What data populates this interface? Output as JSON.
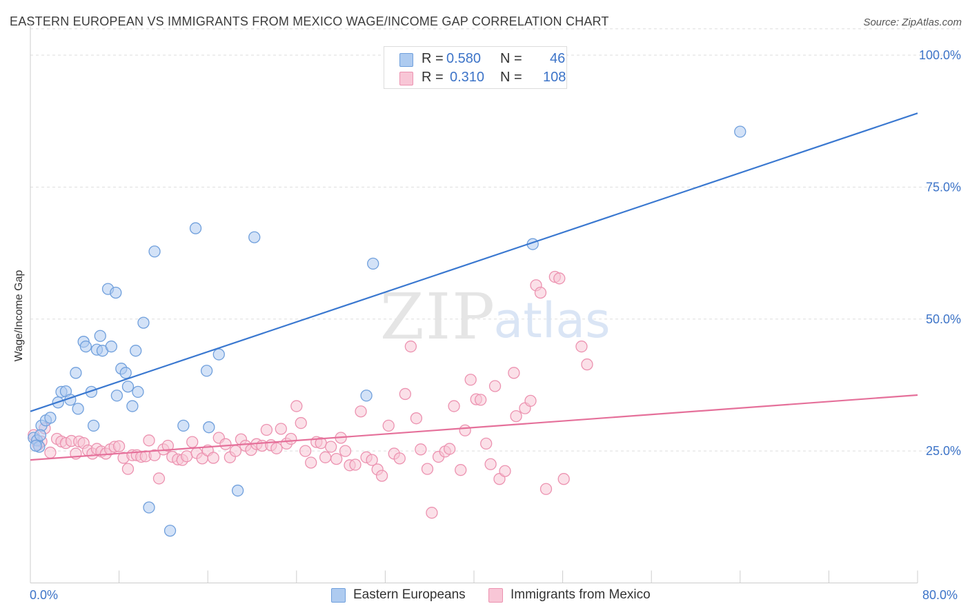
{
  "title": "EASTERN EUROPEAN VS IMMIGRANTS FROM MEXICO WAGE/INCOME GAP CORRELATION CHART",
  "source": "Source: ZipAtlas.com",
  "watermark": {
    "zip": "ZIP",
    "atlas": "atlas"
  },
  "legend_top": {
    "series1": {
      "r_label": "R =",
      "r_value": "0.580",
      "n_label": "N =",
      "n_value": "46"
    },
    "series2": {
      "r_label": "R =",
      "r_value": "0.310",
      "n_label": "N =",
      "n_value": "108"
    }
  },
  "legend_bottom": {
    "series1": "Eastern Europeans",
    "series2": "Immigrants from Mexico"
  },
  "x_axis_labels": {
    "min": "0.0%",
    "max": "80.0%"
  },
  "colors": {
    "blue_fill": "#aecbf0",
    "blue_stroke": "#6f9fdc",
    "blue_line": "#3a78d0",
    "pink_fill": "#f8c6d6",
    "pink_stroke": "#ec92b0",
    "pink_line": "#e5709a",
    "tick_label": "#3d74c8",
    "grid": "#dddddd"
  },
  "chart_data": {
    "type": "scatter",
    "title": "EASTERN EUROPEAN VS IMMIGRANTS FROM MEXICO WAGE/INCOME GAP CORRELATION CHART",
    "xlabel": "",
    "ylabel": "Wage/Income Gap",
    "xlim": [
      0,
      80
    ],
    "ylim": [
      0,
      105
    ],
    "y_ticks": [
      {
        "value": 25,
        "label": "25.0%"
      },
      {
        "value": 50,
        "label": "50.0%"
      },
      {
        "value": 75,
        "label": "75.0%"
      },
      {
        "value": 100,
        "label": "100.0%"
      }
    ],
    "grid": "horizontal dashed",
    "legend": "top-center",
    "series": [
      {
        "name": "Eastern Europeans",
        "r": 0.58,
        "n": 46,
        "trend": {
          "x": [
            0,
            80
          ],
          "y": [
            32.5,
            89.0
          ]
        },
        "points": [
          [
            0.3,
            27.5
          ],
          [
            0.6,
            27.0
          ],
          [
            0.8,
            25.8
          ],
          [
            1.0,
            29.8
          ],
          [
            1.4,
            30.8
          ],
          [
            1.8,
            31.3
          ],
          [
            2.5,
            34.2
          ],
          [
            2.8,
            36.2
          ],
          [
            3.2,
            36.3
          ],
          [
            3.6,
            34.7
          ],
          [
            4.1,
            39.8
          ],
          [
            4.3,
            33.0
          ],
          [
            4.8,
            45.7
          ],
          [
            5.0,
            44.8
          ],
          [
            5.5,
            36.2
          ],
          [
            5.7,
            29.8
          ],
          [
            6.0,
            44.2
          ],
          [
            6.3,
            46.8
          ],
          [
            6.5,
            44.0
          ],
          [
            7.0,
            55.7
          ],
          [
            7.3,
            44.8
          ],
          [
            7.7,
            55.0
          ],
          [
            7.8,
            35.5
          ],
          [
            8.2,
            40.6
          ],
          [
            8.6,
            39.8
          ],
          [
            8.8,
            37.2
          ],
          [
            9.2,
            33.5
          ],
          [
            9.5,
            44.0
          ],
          [
            9.7,
            36.2
          ],
          [
            10.2,
            49.3
          ],
          [
            10.7,
            14.3
          ],
          [
            11.2,
            62.8
          ],
          [
            12.6,
            9.9
          ],
          [
            13.8,
            29.8
          ],
          [
            14.9,
            67.2
          ],
          [
            15.9,
            40.2
          ],
          [
            16.1,
            29.5
          ],
          [
            17.0,
            43.3
          ],
          [
            18.7,
            17.5
          ],
          [
            20.2,
            65.5
          ],
          [
            30.3,
            35.5
          ],
          [
            30.9,
            60.5
          ],
          [
            45.3,
            64.2
          ],
          [
            64.0,
            85.5
          ],
          [
            0.5,
            26.0
          ],
          [
            0.9,
            28.0
          ]
        ]
      },
      {
        "name": "Immigrants from Mexico",
        "r": 0.31,
        "n": 108,
        "trend": {
          "x": [
            0,
            80
          ],
          "y": [
            23.3,
            35.6
          ]
        },
        "points": [
          [
            0.3,
            28.0
          ],
          [
            0.7,
            26.2
          ],
          [
            1.0,
            26.8
          ],
          [
            1.3,
            29.3
          ],
          [
            1.8,
            24.7
          ],
          [
            2.4,
            27.3
          ],
          [
            2.8,
            26.8
          ],
          [
            3.2,
            26.5
          ],
          [
            3.7,
            26.9
          ],
          [
            4.1,
            24.5
          ],
          [
            4.4,
            26.8
          ],
          [
            4.8,
            26.5
          ],
          [
            5.2,
            25.1
          ],
          [
            5.6,
            24.5
          ],
          [
            6.0,
            25.4
          ],
          [
            6.4,
            24.9
          ],
          [
            6.8,
            24.5
          ],
          [
            7.2,
            25.3
          ],
          [
            7.6,
            25.8
          ],
          [
            8.0,
            25.9
          ],
          [
            8.4,
            23.7
          ],
          [
            8.8,
            21.6
          ],
          [
            9.2,
            24.2
          ],
          [
            9.6,
            24.2
          ],
          [
            10.0,
            23.9
          ],
          [
            10.4,
            24.0
          ],
          [
            10.7,
            27.0
          ],
          [
            11.2,
            24.2
          ],
          [
            11.6,
            19.8
          ],
          [
            12.0,
            25.3
          ],
          [
            12.4,
            26.0
          ],
          [
            12.8,
            23.9
          ],
          [
            13.3,
            23.4
          ],
          [
            13.7,
            23.3
          ],
          [
            14.1,
            24.0
          ],
          [
            14.6,
            26.7
          ],
          [
            15.0,
            24.6
          ],
          [
            15.5,
            23.6
          ],
          [
            16.0,
            25.1
          ],
          [
            16.5,
            23.7
          ],
          [
            17.0,
            27.5
          ],
          [
            17.6,
            26.3
          ],
          [
            18.0,
            23.8
          ],
          [
            18.5,
            25.0
          ],
          [
            19.0,
            27.2
          ],
          [
            19.4,
            26.0
          ],
          [
            19.9,
            25.2
          ],
          [
            20.4,
            26.3
          ],
          [
            20.9,
            26.0
          ],
          [
            21.3,
            29.0
          ],
          [
            21.7,
            26.1
          ],
          [
            22.2,
            25.5
          ],
          [
            22.6,
            29.2
          ],
          [
            23.1,
            26.4
          ],
          [
            23.5,
            27.3
          ],
          [
            24.0,
            33.5
          ],
          [
            24.4,
            30.3
          ],
          [
            24.8,
            25.0
          ],
          [
            25.3,
            22.8
          ],
          [
            25.8,
            26.7
          ],
          [
            26.2,
            26.5
          ],
          [
            26.6,
            23.8
          ],
          [
            27.1,
            25.8
          ],
          [
            27.6,
            23.5
          ],
          [
            28.0,
            27.5
          ],
          [
            28.4,
            25.0
          ],
          [
            28.8,
            22.3
          ],
          [
            29.3,
            22.4
          ],
          [
            29.8,
            32.5
          ],
          [
            30.3,
            23.8
          ],
          [
            30.8,
            23.3
          ],
          [
            31.3,
            21.5
          ],
          [
            31.7,
            20.3
          ],
          [
            32.3,
            29.8
          ],
          [
            32.8,
            24.5
          ],
          [
            33.3,
            23.6
          ],
          [
            33.8,
            35.8
          ],
          [
            34.3,
            44.8
          ],
          [
            34.8,
            31.2
          ],
          [
            35.2,
            25.3
          ],
          [
            35.8,
            21.6
          ],
          [
            36.2,
            13.3
          ],
          [
            36.8,
            23.9
          ],
          [
            37.4,
            24.9
          ],
          [
            37.8,
            25.4
          ],
          [
            38.2,
            33.5
          ],
          [
            38.8,
            21.4
          ],
          [
            39.2,
            28.9
          ],
          [
            39.7,
            38.5
          ],
          [
            40.2,
            34.8
          ],
          [
            40.6,
            34.7
          ],
          [
            41.1,
            26.4
          ],
          [
            41.5,
            22.5
          ],
          [
            41.9,
            37.3
          ],
          [
            42.3,
            19.7
          ],
          [
            42.8,
            21.2
          ],
          [
            43.6,
            39.8
          ],
          [
            43.8,
            31.6
          ],
          [
            44.6,
            33.1
          ],
          [
            45.1,
            34.5
          ],
          [
            45.6,
            56.4
          ],
          [
            46.0,
            55.0
          ],
          [
            46.5,
            17.8
          ],
          [
            47.3,
            58.0
          ],
          [
            47.7,
            57.7
          ],
          [
            48.1,
            19.7
          ],
          [
            49.7,
            44.8
          ],
          [
            50.2,
            41.4
          ]
        ]
      }
    ]
  }
}
